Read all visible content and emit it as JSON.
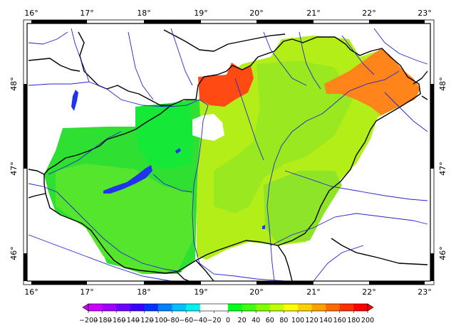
{
  "map": {
    "lon_ticks": [
      "16°",
      "17°",
      "18°",
      "19°",
      "20°",
      "21°",
      "22°",
      "23°"
    ],
    "lat_ticks": [
      "48°",
      "47°",
      "46°"
    ],
    "colors": {
      "river": "#2222cc",
      "lake": "#2233ee",
      "border": "#000000",
      "zone_green": "#22e02a",
      "zone_green_light": "#66e830",
      "zone_yellowgreen": "#b2ee18",
      "zone_lime": "#9be820",
      "zone_orange": "#ff8a1a",
      "zone_red": "#ff4a14",
      "zone_gray": "#22e846"
    }
  },
  "colorbar": {
    "labels": [
      "−200",
      "−180",
      "−160",
      "−140",
      "−120",
      "−100",
      "−80",
      "−60",
      "−40",
      "−20",
      "0",
      "20",
      "40",
      "60",
      "80",
      "100",
      "120",
      "140",
      "160",
      "180",
      "200"
    ],
    "colors": [
      "#cc00ff",
      "#a000ff",
      "#7000ff",
      "#3a00ff",
      "#0033ff",
      "#0080ff",
      "#00c0ff",
      "#00f0f0",
      "#ffffff",
      "#ffffff",
      "#00ff20",
      "#40ff10",
      "#80ff00",
      "#c0ff00",
      "#ffff00",
      "#ffd000",
      "#ffa000",
      "#ff6a00",
      "#ff3000",
      "#ff0000"
    ]
  }
}
